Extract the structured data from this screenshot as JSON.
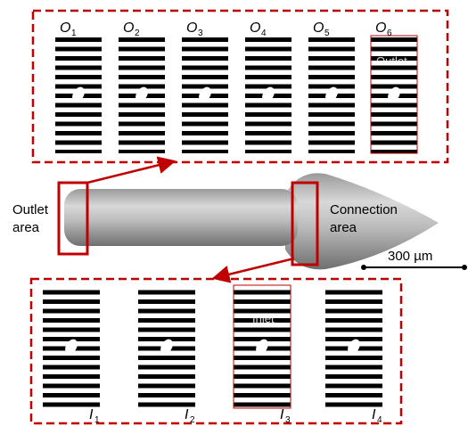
{
  "top_panel": {
    "slices": [
      {
        "letter": "O",
        "index": "1"
      },
      {
        "letter": "O",
        "index": "2"
      },
      {
        "letter": "O",
        "index": "3"
      },
      {
        "letter": "O",
        "index": "4"
      },
      {
        "letter": "O",
        "index": "5"
      },
      {
        "letter": "O",
        "index": "6"
      }
    ],
    "inner_label": "Outlet"
  },
  "bottom_panel": {
    "slices": [
      {
        "letter": "I",
        "index": "1"
      },
      {
        "letter": "I",
        "index": "2"
      },
      {
        "letter": "I",
        "index": "3"
      },
      {
        "letter": "I",
        "index": "4"
      }
    ],
    "inner_label": "Inlet"
  },
  "outlet_area": [
    "Outlet",
    "area"
  ],
  "connection_area": [
    "Connection",
    "area"
  ],
  "scale_bar": "300 µm"
}
